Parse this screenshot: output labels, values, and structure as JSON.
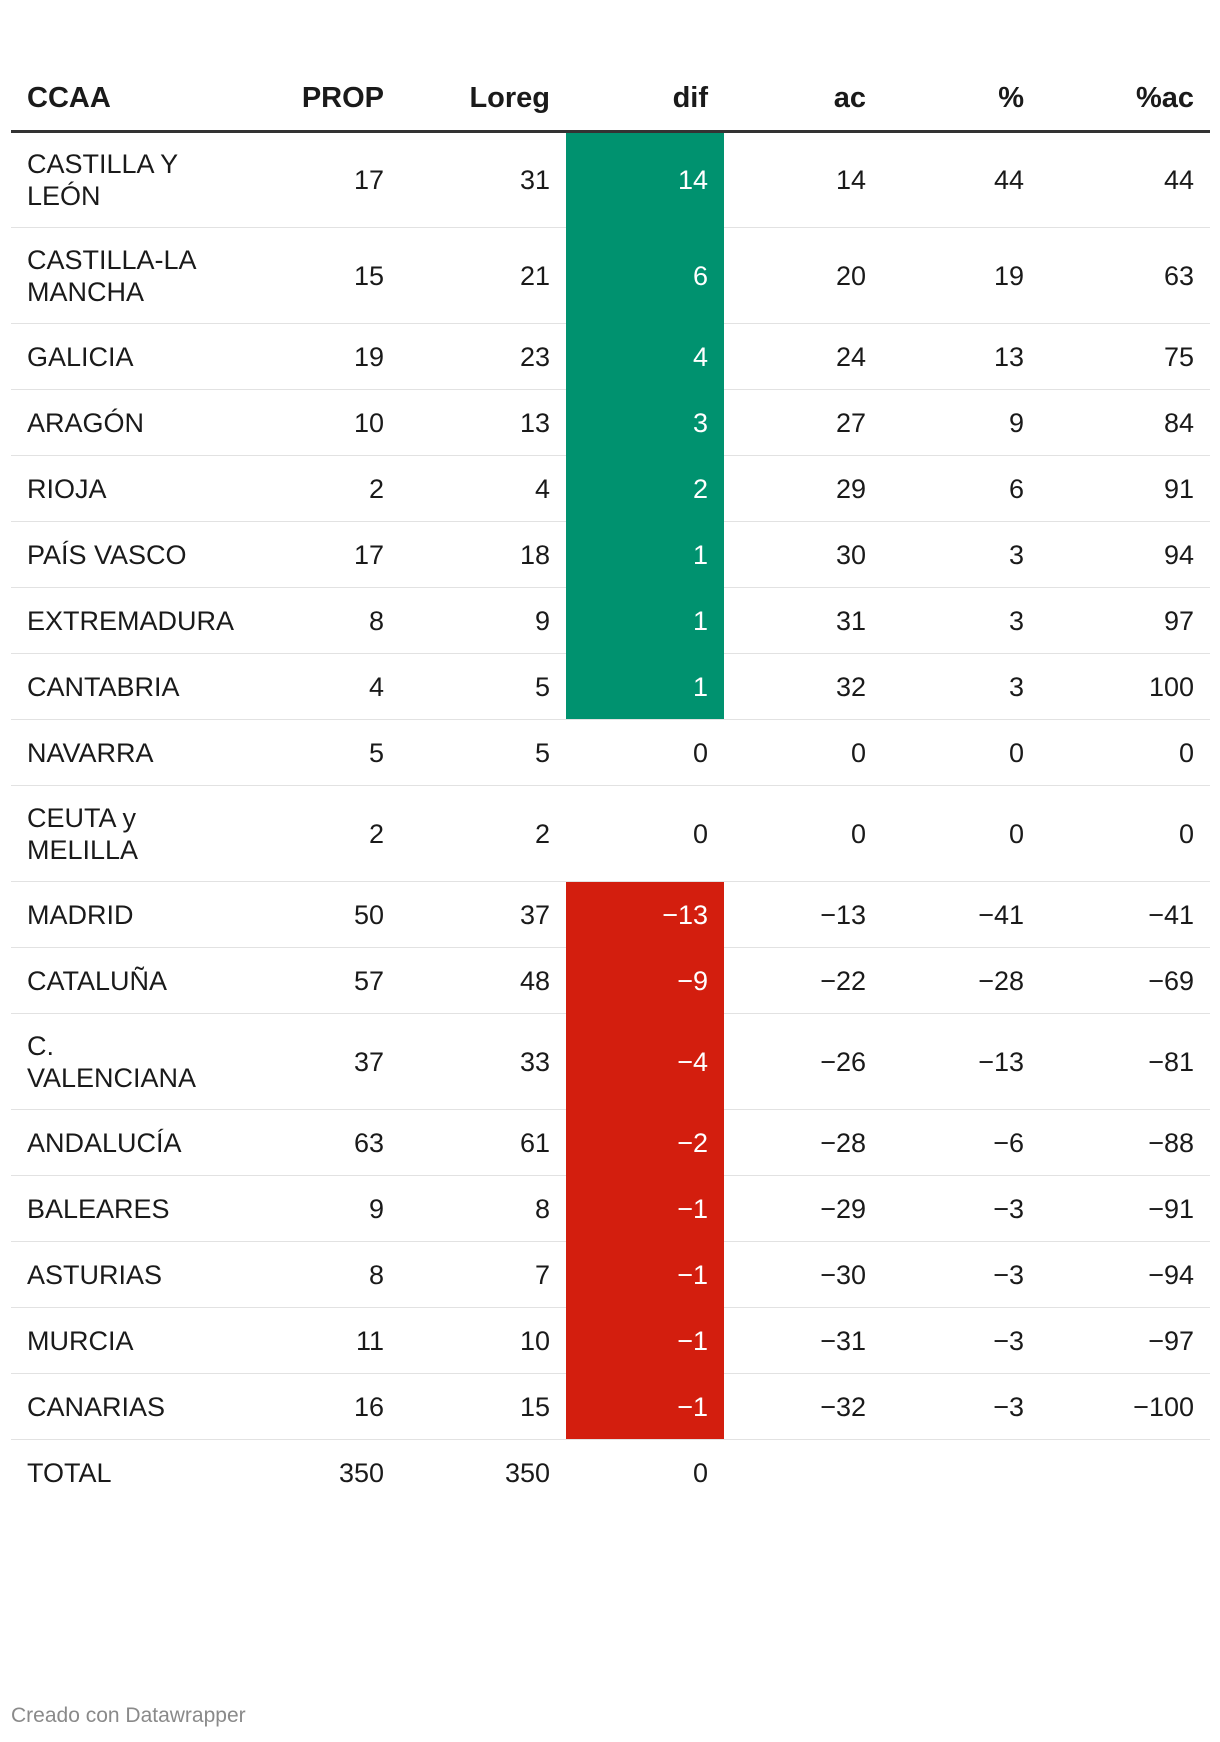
{
  "chart_data": {
    "type": "table",
    "columns": [
      "CCAA",
      "PROP",
      "Loreg",
      "dif",
      "ac",
      "%",
      "%ac"
    ],
    "rows": [
      {
        "ccaa": "CASTILLA Y LEÓN",
        "prop": "17",
        "loreg": "31",
        "dif": "14",
        "ac": "14",
        "pct": "44",
        "pctac": "44",
        "sign": "pos"
      },
      {
        "ccaa": "CASTILLA-LA MANCHA",
        "prop": "15",
        "loreg": "21",
        "dif": "6",
        "ac": "20",
        "pct": "19",
        "pctac": "63",
        "sign": "pos"
      },
      {
        "ccaa": "GALICIA",
        "prop": "19",
        "loreg": "23",
        "dif": "4",
        "ac": "24",
        "pct": "13",
        "pctac": "75",
        "sign": "pos"
      },
      {
        "ccaa": "ARAGÓN",
        "prop": "10",
        "loreg": "13",
        "dif": "3",
        "ac": "27",
        "pct": "9",
        "pctac": "84",
        "sign": "pos"
      },
      {
        "ccaa": "RIOJA",
        "prop": "2",
        "loreg": "4",
        "dif": "2",
        "ac": "29",
        "pct": "6",
        "pctac": "91",
        "sign": "pos"
      },
      {
        "ccaa": "PAÍS VASCO",
        "prop": "17",
        "loreg": "18",
        "dif": "1",
        "ac": "30",
        "pct": "3",
        "pctac": "94",
        "sign": "pos"
      },
      {
        "ccaa": "EXTREMADURA",
        "prop": "8",
        "loreg": "9",
        "dif": "1",
        "ac": "31",
        "pct": "3",
        "pctac": "97",
        "sign": "pos"
      },
      {
        "ccaa": "CANTABRIA",
        "prop": "4",
        "loreg": "5",
        "dif": "1",
        "ac": "32",
        "pct": "3",
        "pctac": "100",
        "sign": "pos"
      },
      {
        "ccaa": "NAVARRA",
        "prop": "5",
        "loreg": "5",
        "dif": "0",
        "ac": "0",
        "pct": "0",
        "pctac": "0",
        "sign": "zero"
      },
      {
        "ccaa": "CEUTA y MELILLA",
        "prop": "2",
        "loreg": "2",
        "dif": "0",
        "ac": "0",
        "pct": "0",
        "pctac": "0",
        "sign": "zero"
      },
      {
        "ccaa": "MADRID",
        "prop": "50",
        "loreg": "37",
        "dif": "−13",
        "ac": "−13",
        "pct": "−41",
        "pctac": "−41",
        "sign": "neg"
      },
      {
        "ccaa": "CATALUÑA",
        "prop": "57",
        "loreg": "48",
        "dif": "−9",
        "ac": "−22",
        "pct": "−28",
        "pctac": "−69",
        "sign": "neg"
      },
      {
        "ccaa": "C. VALENCIANA",
        "prop": "37",
        "loreg": "33",
        "dif": "−4",
        "ac": "−26",
        "pct": "−13",
        "pctac": "−81",
        "sign": "neg"
      },
      {
        "ccaa": "ANDALUCÍA",
        "prop": "63",
        "loreg": "61",
        "dif": "−2",
        "ac": "−28",
        "pct": "−6",
        "pctac": "−88",
        "sign": "neg"
      },
      {
        "ccaa": "BALEARES",
        "prop": "9",
        "loreg": "8",
        "dif": "−1",
        "ac": "−29",
        "pct": "−3",
        "pctac": "−91",
        "sign": "neg"
      },
      {
        "ccaa": "ASTURIAS",
        "prop": "8",
        "loreg": "7",
        "dif": "−1",
        "ac": "−30",
        "pct": "−3",
        "pctac": "−94",
        "sign": "neg"
      },
      {
        "ccaa": "MURCIA",
        "prop": "11",
        "loreg": "10",
        "dif": "−1",
        "ac": "−31",
        "pct": "−3",
        "pctac": "−97",
        "sign": "neg"
      },
      {
        "ccaa": "CANARIAS",
        "prop": "16",
        "loreg": "15",
        "dif": "−1",
        "ac": "−32",
        "pct": "−3",
        "pctac": "−100",
        "sign": "neg"
      }
    ],
    "total": {
      "ccaa": "TOTAL",
      "prop": "350",
      "loreg": "350",
      "dif": "0",
      "ac": "",
      "pct": "",
      "pctac": ""
    },
    "colors": {
      "positive": "#00926f",
      "negative": "#d31e0e",
      "header_rule": "#333333",
      "row_rule": "#e2e2e2"
    }
  },
  "footer": {
    "credit": "Creado con Datawrapper"
  }
}
